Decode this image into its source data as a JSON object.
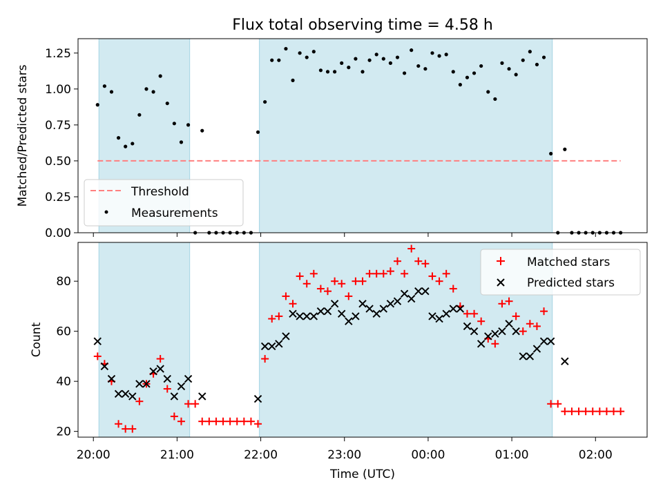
{
  "chart_data": [
    {
      "type": "scatter",
      "title": "Flux total observing time = 4.58 h",
      "xlabel": "",
      "ylabel": "Matched/Predicted stars",
      "ylim": [
        0,
        1.35
      ],
      "xlim": [
        "19:49",
        "02:37"
      ],
      "yticks": [
        "0.00",
        "0.25",
        "0.50",
        "0.75",
        "1.00",
        "1.25"
      ],
      "threshold": 0.5,
      "threshold_color": "#ff7f7f",
      "shade_color": "#add8e6",
      "shaded_intervals": [
        [
          "20:04",
          "21:09"
        ],
        [
          "21:59",
          "01:29"
        ]
      ],
      "legend_position": "lower left",
      "legend": {
        "threshold_label": "Threshold",
        "measurements_label": "Measurements"
      },
      "series": [
        {
          "name": "Measurements",
          "color": "#000000",
          "times": [
            "20:03",
            "20:08",
            "20:13",
            "20:18",
            "20:23",
            "20:28",
            "20:33",
            "20:38",
            "20:43",
            "20:48",
            "20:53",
            "20:58",
            "21:03",
            "21:08",
            "21:13",
            "21:18",
            "21:23",
            "21:28",
            "21:33",
            "21:38",
            "21:43",
            "21:48",
            "21:53",
            "21:58",
            "22:03",
            "22:08",
            "22:13",
            "22:18",
            "22:23",
            "22:28",
            "22:33",
            "22:38",
            "22:43",
            "22:48",
            "22:53",
            "22:58",
            "23:03",
            "23:08",
            "23:13",
            "23:18",
            "23:23",
            "23:28",
            "23:33",
            "23:38",
            "23:43",
            "23:48",
            "23:53",
            "23:58",
            "00:03",
            "00:08",
            "00:13",
            "00:18",
            "00:23",
            "00:28",
            "00:33",
            "00:38",
            "00:43",
            "00:48",
            "00:53",
            "00:58",
            "01:03",
            "01:08",
            "01:13",
            "01:18",
            "01:23",
            "01:28",
            "01:33",
            "01:38",
            "01:43",
            "01:48",
            "01:53",
            "01:58",
            "02:03",
            "02:08",
            "02:13",
            "02:18"
          ],
          "values": [
            0.89,
            1.02,
            0.98,
            0.66,
            0.6,
            0.62,
            0.82,
            1.0,
            0.98,
            1.09,
            0.9,
            0.76,
            0.63,
            0.75,
            0.0,
            0.71,
            0.0,
            0.0,
            0.0,
            0.0,
            0.0,
            0.0,
            0.0,
            0.7,
            0.91,
            1.2,
            1.2,
            1.28,
            1.06,
            1.25,
            1.22,
            1.26,
            1.13,
            1.12,
            1.12,
            1.18,
            1.15,
            1.21,
            1.12,
            1.2,
            1.24,
            1.21,
            1.18,
            1.22,
            1.11,
            1.27,
            1.16,
            1.14,
            1.25,
            1.23,
            1.24,
            1.12,
            1.03,
            1.08,
            1.11,
            1.16,
            0.98,
            0.93,
            1.18,
            1.14,
            1.1,
            1.2,
            1.26,
            1.17,
            1.22,
            0.55,
            0.0,
            0.58,
            0.0,
            0.0,
            0.0,
            0.0,
            0.0,
            0.0,
            0.0,
            0.0
          ]
        }
      ]
    },
    {
      "type": "scatter",
      "title": "",
      "xlabel": "Time (UTC)",
      "ylabel": "Count",
      "ylim": [
        17.7,
        95.5
      ],
      "xlim": [
        "19:49",
        "02:37"
      ],
      "yticks": [
        "20",
        "40",
        "60",
        "80"
      ],
      "xticks": [
        "20:00",
        "21:00",
        "22:00",
        "23:00",
        "00:00",
        "01:00",
        "02:00"
      ],
      "shade_color": "#add8e6",
      "shaded_intervals": [
        [
          "20:04",
          "21:09"
        ],
        [
          "21:59",
          "01:29"
        ]
      ],
      "legend_position": "upper right",
      "series": [
        {
          "name": "Matched stars",
          "color": "#ff0000",
          "marker": "plus",
          "times": [
            "20:03",
            "20:08",
            "20:13",
            "20:18",
            "20:23",
            "20:28",
            "20:33",
            "20:38",
            "20:43",
            "20:48",
            "20:53",
            "20:58",
            "21:03",
            "21:08",
            "21:13",
            "21:18",
            "21:23",
            "21:28",
            "21:33",
            "21:38",
            "21:43",
            "21:48",
            "21:53",
            "21:58",
            "22:03",
            "22:08",
            "22:13",
            "22:18",
            "22:23",
            "22:28",
            "22:33",
            "22:38",
            "22:43",
            "22:48",
            "22:53",
            "22:58",
            "23:03",
            "23:08",
            "23:13",
            "23:18",
            "23:23",
            "23:28",
            "23:33",
            "23:38",
            "23:43",
            "23:48",
            "23:53",
            "23:58",
            "00:03",
            "00:08",
            "00:13",
            "00:18",
            "00:23",
            "00:28",
            "00:33",
            "00:38",
            "00:43",
            "00:48",
            "00:53",
            "00:58",
            "01:03",
            "01:08",
            "01:13",
            "01:18",
            "01:23",
            "01:28",
            "01:33",
            "01:38",
            "01:43",
            "01:48",
            "01:53",
            "01:58",
            "02:03",
            "02:08",
            "02:13",
            "02:18"
          ],
          "values": [
            50,
            47,
            40,
            23,
            21,
            21,
            32,
            39,
            43,
            49,
            37,
            26,
            24,
            31,
            31,
            24,
            24,
            24,
            24,
            24,
            24,
            24,
            24,
            23,
            49,
            65,
            66,
            74,
            71,
            82,
            79,
            83,
            77,
            76,
            80,
            79,
            74,
            80,
            80,
            83,
            83,
            83,
            84,
            88,
            83,
            93,
            88,
            87,
            82,
            80,
            83,
            77,
            70,
            67,
            67,
            64,
            57,
            55,
            71,
            72,
            66,
            60,
            63,
            62,
            68,
            31,
            31,
            28,
            28,
            28,
            28,
            28,
            28,
            28,
            28,
            28
          ]
        },
        {
          "name": "Predicted stars",
          "color": "#000000",
          "marker": "x",
          "times": [
            "20:03",
            "20:08",
            "20:13",
            "20:18",
            "20:23",
            "20:28",
            "20:33",
            "20:38",
            "20:43",
            "20:48",
            "20:53",
            "20:58",
            "21:03",
            "21:08",
            "21:18",
            "21:58",
            "22:03",
            "22:08",
            "22:13",
            "22:18",
            "22:23",
            "22:28",
            "22:33",
            "22:38",
            "22:43",
            "22:48",
            "22:53",
            "22:58",
            "23:03",
            "23:08",
            "23:13",
            "23:18",
            "23:23",
            "23:28",
            "23:33",
            "23:38",
            "23:43",
            "23:48",
            "23:53",
            "23:58",
            "00:03",
            "00:08",
            "00:13",
            "00:18",
            "00:23",
            "00:28",
            "00:33",
            "00:38",
            "00:43",
            "00:48",
            "00:53",
            "00:58",
            "01:03",
            "01:08",
            "01:13",
            "01:18",
            "01:23",
            "01:28",
            "01:38"
          ],
          "values": [
            56,
            46,
            41,
            35,
            35,
            34,
            39,
            39,
            44,
            45,
            41,
            34,
            38,
            41,
            34,
            33,
            54,
            54,
            55,
            58,
            67,
            66,
            66,
            66,
            68,
            68,
            71,
            67,
            64,
            66,
            71,
            69,
            67,
            69,
            71,
            72,
            75,
            73,
            76,
            76,
            66,
            65,
            67,
            69,
            69,
            62,
            60,
            55,
            58,
            59,
            60,
            63,
            60,
            50,
            50,
            53,
            56,
            56,
            48
          ]
        }
      ]
    }
  ]
}
